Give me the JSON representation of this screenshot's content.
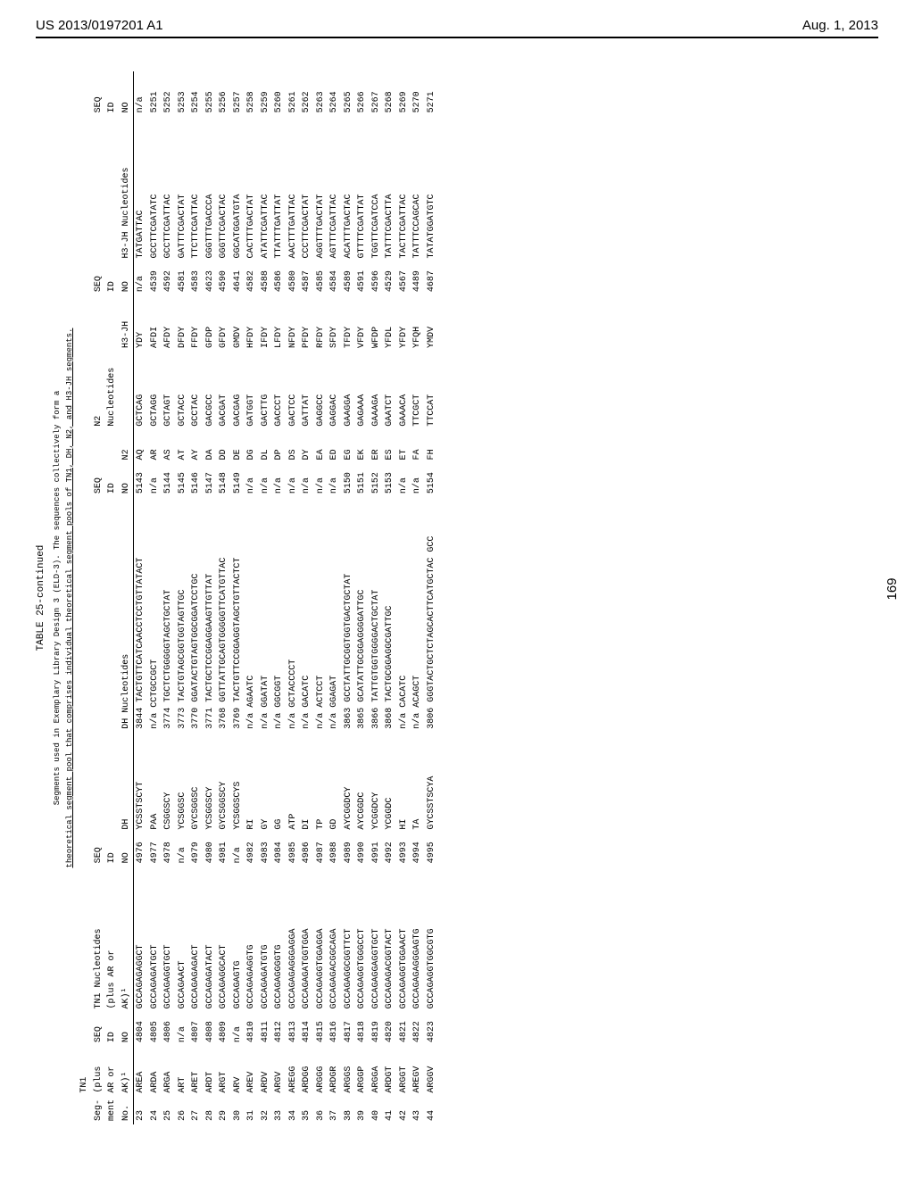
{
  "header": {
    "left": "US 2013/0197201 A1",
    "right": "Aug. 1, 2013"
  },
  "page_side": "169",
  "table": {
    "title": "TABLE 25-continued",
    "caption_l1": "Segments used in Exemplary Library Design 3 (ELD-3). The sequences collectively form a",
    "caption_l2": "theoretical segment pool that comprises individual theoretical segment pools of TN1, DH, N2, and H3-JH segments.",
    "head_rows": [
      [
        "",
        "TN1",
        "",
        "",
        "",
        "",
        "",
        "",
        "",
        "",
        "",
        "",
        "",
        ""
      ],
      [
        "Seg-",
        "(plus",
        "SEQ",
        "TN1 Nucleotides",
        "SEQ",
        "",
        "",
        "SEQ",
        "",
        "N2",
        "",
        "SEQ",
        "",
        "SEQ"
      ],
      [
        "ment",
        "AR or",
        "ID",
        "(plus AR or",
        "ID",
        "",
        "",
        "ID",
        "",
        "Nucleotides",
        "",
        "ID",
        "",
        "ID"
      ],
      [
        "No.",
        "AK)¹",
        "NO",
        "AK)¹",
        "NO",
        "DH",
        "DH Nucleotides",
        "NO",
        "N2",
        "",
        "H3-JH",
        "NO",
        "H3-JH Nucleotides",
        "NO"
      ]
    ],
    "rows": [
      [
        "23",
        "AREA",
        "4804",
        "GCCAGAGAGGCT",
        "4976",
        "YCSSTSCYT",
        "3844",
        "TACTGTTCATCAACCTCCTGTTATACT",
        "5143",
        "AQ",
        "GCTCAG",
        "YDY",
        "n/a",
        "TATGATTAC",
        "n/a"
      ],
      [
        "24",
        "ARDA",
        "4805",
        "GCCAGAGATGCT",
        "4977",
        "PAA",
        "n/a",
        "CCTGCCGCT",
        "n/a",
        "AR",
        "GCTAGG",
        "AFDI",
        "4539",
        "GCCTTCGATATC",
        "5251"
      ],
      [
        "25",
        "ARGA",
        "4806",
        "GCCAGAGGTGCT",
        "4978",
        "CSGGSCY",
        "3774",
        "TGCTCTGGGGGTAGCTGCTAT",
        "5144",
        "AS",
        "GCTAGT",
        "AFDY",
        "4592",
        "GCCTTCGATTAC",
        "5252"
      ],
      [
        "26",
        "ART",
        "n/a",
        "GCCAGAACT",
        "n/a",
        "YCSGGSC",
        "3773",
        "TACTGTAGCGGTGGTAGTTGC",
        "5145",
        "AT",
        "GCTACC",
        "DFDY",
        "4581",
        "GATTTCGACTAT",
        "5253"
      ],
      [
        "27",
        "ARET",
        "4807",
        "GCCAGAGAGACT",
        "4979",
        "GYCSGGSC",
        "3770",
        "GGATACTGTAGTGGCGGATCCTGC",
        "5146",
        "AY",
        "GCCTAC",
        "FFDY",
        "4583",
        "TTCTTCGATTAC",
        "5254"
      ],
      [
        "28",
        "ARDT",
        "4808",
        "GCCAGAGATACT",
        "4980",
        "YCSGGSCY",
        "3771",
        "TACTGCTCCGGAGGAAGTTGTTAT",
        "5147",
        "DA",
        "GACGCC",
        "GFDP",
        "4623",
        "GGGTTTGACCCA",
        "5255"
      ],
      [
        "29",
        "ARGT",
        "4809",
        "GCCAGAGGCACT",
        "4981",
        "GYCSGGSCY",
        "3768",
        "GGTTATTGCAGTGGGGGTTCATGTTAC",
        "5148",
        "DD",
        "GACGAT",
        "GFDY",
        "4590",
        "GGGTTCGACTAC",
        "5256"
      ],
      [
        "30",
        "ARV",
        "n/a",
        "GCCAGAGTG",
        "n/a",
        "YCSGGSCYS",
        "3769",
        "TACTGTTCCGGAGGTAGCTGTTACTCT",
        "5149",
        "DE",
        "GACGAG",
        "GMDV",
        "4641",
        "GGCATGGATGTA",
        "5257"
      ],
      [
        "31",
        "AREV",
        "4810",
        "GCCAGAGAGGTG",
        "4982",
        "RI",
        "n/a",
        "AGAATC",
        "n/a",
        "DG",
        "GATGGT",
        "HFDY",
        "4582",
        "CACTTTGACTAT",
        "5258"
      ],
      [
        "32",
        "ARDV",
        "4811",
        "GCCAGAGATGTG",
        "4983",
        "GY",
        "n/a",
        "GGATAT",
        "n/a",
        "DL",
        "GACTTG",
        "IFDY",
        "4588",
        "ATATTCGATTAC",
        "5259"
      ],
      [
        "33",
        "ARGV",
        "4812",
        "GCCAGAGGGGTG",
        "4984",
        "GG",
        "n/a",
        "GGCGGT",
        "n/a",
        "DP",
        "GACCCT",
        "LFDY",
        "4586",
        "TTATTTGATTAT",
        "5260"
      ],
      [
        "34",
        "AREGG",
        "4813",
        "GCCAGAGAGGGAGGA",
        "4985",
        "ATP",
        "n/a",
        "GCTACCCCT",
        "n/a",
        "DS",
        "GACTCC",
        "NFDY",
        "4580",
        "AACTTTGATTAC",
        "5261"
      ],
      [
        "35",
        "ARDGG",
        "4814",
        "GCCAGAGATGGTGGA",
        "4986",
        "DI",
        "n/a",
        "GACATC",
        "n/a",
        "DY",
        "GATTAT",
        "PFDY",
        "4587",
        "CCCTTCGACTAT",
        "5262"
      ],
      [
        "36",
        "ARGGG",
        "4815",
        "GCCAGAGGTGGAGGA",
        "4987",
        "TP",
        "n/a",
        "ACTCCT",
        "n/a",
        "EA",
        "GAGGCC",
        "RFDY",
        "4585",
        "AGGTTTGACTAT",
        "5263"
      ],
      [
        "37",
        "ARDGR",
        "4816",
        "GCCAGAGACGGCAGA",
        "4988",
        "GD",
        "n/a",
        "GGAGAT",
        "n/a",
        "ED",
        "GAGGAC",
        "SFDY",
        "4584",
        "AGTTTCGATTAC",
        "5264"
      ],
      [
        "38",
        "ARGGS",
        "4817",
        "GCCAGAGGCGGTTCT",
        "4989",
        "AYCGGDCY",
        "3863",
        "GCCTATTGCGGTGGTGACTGCTAT",
        "5150",
        "EG",
        "GAAGGA",
        "TFDY",
        "4589",
        "ACATTTGACTAC",
        "5265"
      ],
      [
        "39",
        "ARGGP",
        "4818",
        "GCCAGAGGTGGGCCT",
        "4990",
        "AYCGGDC",
        "3865",
        "GCATATTGCGGAGGGGATTGC",
        "5151",
        "EK",
        "GAGAAA",
        "VFDY",
        "4591",
        "GTTTTCGATTAT",
        "5266"
      ],
      [
        "40",
        "ARGGA",
        "4819",
        "GCCAGAGGAGGTGCT",
        "4991",
        "YCGGDCY",
        "3866",
        "TATTGTGGTGGGGACTGCTAT",
        "5152",
        "ER",
        "GAAAGA",
        "WFDP",
        "4596",
        "TGGTTCGATCCA",
        "5267"
      ],
      [
        "41",
        "ARDGT",
        "4820",
        "GCCAGAGACGGTACT",
        "4992",
        "YCGGDC",
        "3868",
        "TACTGCGGAGGCGATTGC",
        "5153",
        "ES",
        "GAATCT",
        "YFDL",
        "4529",
        "TATTTCGACTTA",
        "5268"
      ],
      [
        "42",
        "ARGGT",
        "4821",
        "GCCAGAGGTGGAACT",
        "4993",
        "HI",
        "n/a",
        "CACATC",
        "n/a",
        "ET",
        "GAAACA",
        "YFDY",
        "4567",
        "TACTTCGATTAC",
        "5269"
      ],
      [
        "43",
        "AREGV",
        "4822",
        "GCCAGAGAGGGAGTG",
        "4994",
        "TA",
        "n/a",
        "ACAGCT",
        "n/a",
        "FA",
        "TTCGCT",
        "YFQH",
        "4489",
        "TATTTCCAGCAC",
        "5270"
      ],
      [
        "44",
        "ARGGV",
        "4823",
        "GCCAGAGGTGGCGTG",
        "4995",
        "GYCSSTSCYA",
        "3806",
        "GGGTACTGCTCTAGCACTTCATGCTAC GCC",
        "5154",
        "FH",
        "TTCCAT",
        "YMDV",
        "4687",
        "TATATGGATGTC",
        "5271"
      ]
    ]
  }
}
